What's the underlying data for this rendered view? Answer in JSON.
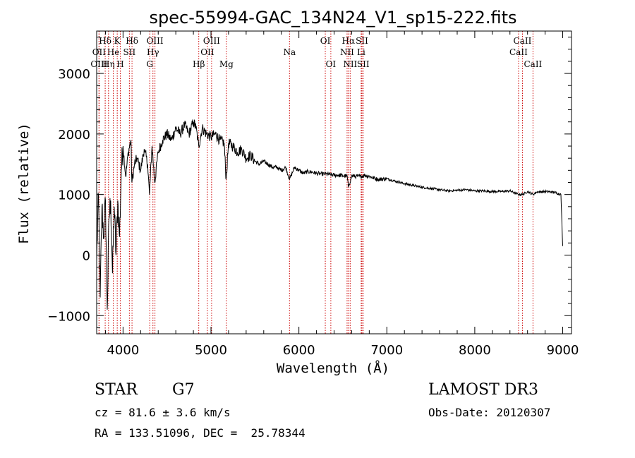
{
  "chart_data": {
    "type": "line",
    "title": "spec-55994-GAC_134N24_V1_sp15-222.fits",
    "xlabel": "Wavelength (Å)",
    "ylabel": "Flux (relative)",
    "xlim": [
      3700,
      9100
    ],
    "ylim": [
      -1300,
      3700
    ],
    "x_ticks": [
      4000,
      5000,
      6000,
      7000,
      8000,
      9000
    ],
    "y_ticks": [
      -1000,
      0,
      1000,
      2000,
      3000
    ],
    "series": [
      {
        "name": "flux",
        "x": [
          3700,
          3720,
          3740,
          3760,
          3780,
          3800,
          3820,
          3840,
          3860,
          3880,
          3900,
          3920,
          3940,
          3960,
          3980,
          4000,
          4030,
          4060,
          4090,
          4100,
          4130,
          4160,
          4200,
          4240,
          4280,
          4300,
          4330,
          4360,
          4400,
          4450,
          4500,
          4550,
          4600,
          4650,
          4700,
          4750,
          4800,
          4830,
          4861,
          4900,
          4950,
          5000,
          5050,
          5100,
          5150,
          5172,
          5200,
          5250,
          5300,
          5350,
          5400,
          5450,
          5500,
          5550,
          5600,
          5650,
          5700,
          5750,
          5800,
          5850,
          5893,
          5950,
          6000,
          6050,
          6100,
          6150,
          6200,
          6250,
          6300,
          6350,
          6400,
          6450,
          6500,
          6550,
          6563,
          6600,
          6650,
          6700,
          6750,
          6800,
          6900,
          7000,
          7100,
          7200,
          7300,
          7400,
          7500,
          7600,
          7700,
          7800,
          7900,
          8000,
          8100,
          8200,
          8300,
          8400,
          8498,
          8542,
          8600,
          8662,
          8700,
          8800,
          8900,
          8980,
          9000
        ],
        "y": [
          -100,
          1000,
          -700,
          800,
          300,
          900,
          -900,
          600,
          900,
          -300,
          800,
          0,
          900,
          300,
          1400,
          1800,
          1300,
          1700,
          1900,
          1200,
          1500,
          1600,
          1400,
          1750,
          1500,
          1000,
          1800,
          1200,
          1700,
          1900,
          2000,
          1900,
          2100,
          2000,
          2150,
          2000,
          2200,
          2100,
          1800,
          2100,
          2000,
          1950,
          2000,
          1900,
          1850,
          1250,
          1850,
          1800,
          1700,
          1750,
          1600,
          1650,
          1550,
          1500,
          1550,
          1500,
          1450,
          1450,
          1400,
          1450,
          1250,
          1450,
          1400,
          1350,
          1380,
          1370,
          1350,
          1340,
          1340,
          1330,
          1320,
          1320,
          1310,
          1300,
          1120,
          1310,
          1300,
          1300,
          1320,
          1300,
          1250,
          1260,
          1220,
          1180,
          1150,
          1120,
          1100,
          1080,
          1060,
          1070,
          1080,
          1060,
          1060,
          1050,
          1050,
          1060,
          1000,
          1000,
          1050,
          1000,
          1040,
          1050,
          1040,
          1000,
          150
        ]
      }
    ],
    "spectral_lines": [
      {
        "label": "Hδ",
        "wavelength": 3797,
        "row": 1
      },
      {
        "label": "OII",
        "wavelength": 3727,
        "row": 2
      },
      {
        "label": "OIII",
        "wavelength": 3727,
        "row": 3
      },
      {
        "label": "He",
        "wavelength": 3889,
        "row": 2
      },
      {
        "label": "Hη",
        "wavelength": 3835,
        "row": 3
      },
      {
        "label": "K",
        "wavelength": 3934,
        "row": 1
      },
      {
        "label": "SII",
        "wavelength": 4072,
        "row": 2
      },
      {
        "label": "H",
        "wavelength": 3969,
        "row": 3
      },
      {
        "label": "Hδ",
        "wavelength": 4102,
        "row": 1
      },
      {
        "label": "OIII",
        "wavelength": 4363,
        "row": 1
      },
      {
        "label": "Hγ",
        "wavelength": 4340,
        "row": 2
      },
      {
        "label": "G",
        "wavelength": 4304,
        "row": 3
      },
      {
        "label": "Hβ",
        "wavelength": 4861,
        "row": 3
      },
      {
        "label": "OIII",
        "wavelength": 5007,
        "row": 1
      },
      {
        "label": "OII",
        "wavelength": 4959,
        "row": 2
      },
      {
        "label": "Mg",
        "wavelength": 5175,
        "row": 3
      },
      {
        "label": "Na",
        "wavelength": 5893,
        "row": 2
      },
      {
        "label": "OI",
        "wavelength": 6300,
        "row": 1
      },
      {
        "label": "OI",
        "wavelength": 6363,
        "row": 3
      },
      {
        "label": "Hα",
        "wavelength": 6563,
        "row": 1
      },
      {
        "label": "NII",
        "wavelength": 6548,
        "row": 2
      },
      {
        "label": "NII",
        "wavelength": 6583,
        "row": 3
      },
      {
        "label": "SII",
        "wavelength": 6717,
        "row": 1
      },
      {
        "label": "Li",
        "wavelength": 6708,
        "row": 2
      },
      {
        "label": "SII",
        "wavelength": 6731,
        "row": 3
      },
      {
        "label": "CaII",
        "wavelength": 8542,
        "row": 1
      },
      {
        "label": "CaII",
        "wavelength": 8498,
        "row": 2
      },
      {
        "label": "CaII",
        "wavelength": 8662,
        "row": 3
      }
    ],
    "line_color": "#000000",
    "marker_color": "#cc0000"
  },
  "info": {
    "object_class": "STAR",
    "subclass": "G7",
    "survey": "LAMOST DR3",
    "redshift": "cz = 81.6 ± 3.6 km/s",
    "obs_date": "Obs-Date: 20120307",
    "coords": "RA = 133.51096, DEC =  25.78344"
  }
}
